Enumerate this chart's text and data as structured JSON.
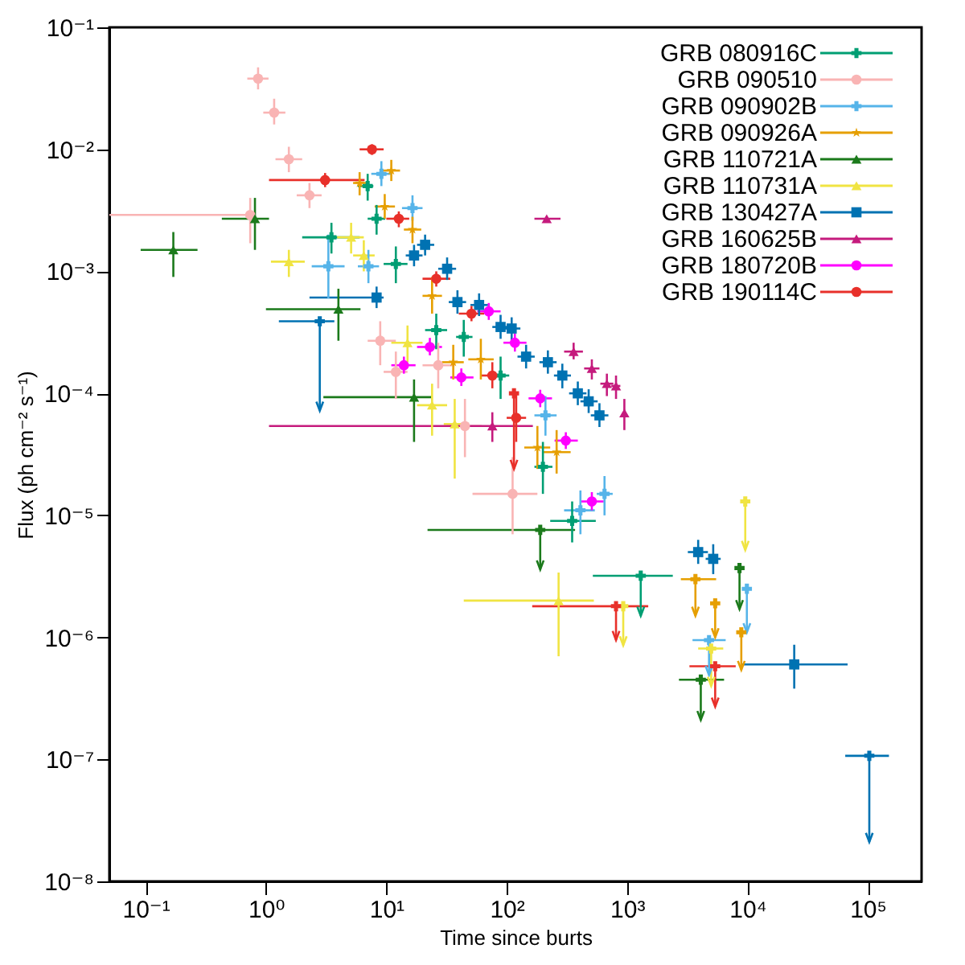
{
  "chart_data": {
    "type": "scatter",
    "xlabel": "Time since burts",
    "ylabel": "Flux (ph cm⁻² s⁻¹)",
    "log": "xy",
    "legend": "top right",
    "xlim": [
      0.05,
      280000
    ],
    "ylim": [
      1e-08,
      0.1
    ],
    "xticks": [
      {
        "value": 0.1,
        "label": "10⁻¹"
      },
      {
        "value": 1,
        "label": "10⁰"
      },
      {
        "value": 10,
        "label": "10¹"
      },
      {
        "value": 100,
        "label": "10²"
      },
      {
        "value": 1000,
        "label": "10³"
      },
      {
        "value": 10000,
        "label": "10⁴"
      },
      {
        "value": 100000,
        "label": "10⁵"
      }
    ],
    "yticks": [
      {
        "value": 1e-08,
        "label": "10⁻⁸"
      },
      {
        "value": 1e-07,
        "label": "10⁻⁷"
      },
      {
        "value": 1e-06,
        "label": "10⁻⁶"
      },
      {
        "value": 1e-05,
        "label": "10⁻⁵"
      },
      {
        "value": 0.0001,
        "label": "10⁻⁴"
      },
      {
        "value": 0.001,
        "label": "10⁻³"
      },
      {
        "value": 0.01,
        "label": "10⁻²"
      },
      {
        "value": 0.1,
        "label": "10⁻¹"
      }
    ],
    "series": [
      {
        "name": "GRB 080916C",
        "color": "#009e73",
        "marker": "cross",
        "x": [
          7.0,
          8.3,
          3.5,
          12,
          26,
          44,
          89,
          200,
          350
        ],
        "values": [
          0.005,
          0.0027,
          0.0019,
          0.00115,
          0.00033,
          0.00029,
          0.00014,
          2.5e-05,
          9e-06
        ],
        "errors": [
          [
            0.0038,
            0.0063
          ],
          [
            0.002,
            0.0035
          ],
          [
            0.0014,
            0.0025
          ],
          [
            0.0008,
            0.0016
          ],
          [
            0.00023,
            0.00045
          ],
          [
            0.0002,
            0.0004
          ],
          [
            9e-05,
            0.0002
          ],
          [
            1.5e-05,
            4e-05
          ],
          [
            6e-06,
            1.3e-05
          ]
        ],
        "xerrors": [
          [
            5.8,
            7.8
          ],
          [
            7,
            9.8
          ],
          [
            2.0,
            6
          ],
          [
            9.5,
            15
          ],
          [
            21,
            32
          ],
          [
            38,
            52
          ],
          [
            75,
            105
          ],
          [
            170,
            240
          ],
          [
            230,
            550
          ]
        ]
      },
      {
        "name": "GRB 090510",
        "color": "#f9b4b4",
        "marker": "circle",
        "x": [
          0.86,
          1.17,
          1.55,
          2.3,
          0.74,
          8.9,
          12,
          27,
          45,
          112
        ],
        "values": [
          0.038,
          0.02,
          0.0083,
          0.0042,
          0.0029,
          0.00027,
          0.00015,
          0.00017,
          5.4e-05,
          1.5e-05
        ],
        "errors": [
          [
            0.031,
            0.047
          ],
          [
            0.016,
            0.026
          ],
          [
            0.0065,
            0.0105
          ],
          [
            0.0033,
            0.0053
          ],
          [
            0.0017,
            0.004
          ],
          [
            0.00017,
            0.00039
          ],
          [
            9e-05,
            0.00022
          ],
          [
            0.00011,
            0.00026
          ],
          [
            3e-05,
            9e-05
          ],
          [
            7e-06,
            3e-05
          ]
        ],
        "xerrors": [
          [
            0.7,
            1.05
          ],
          [
            0.95,
            1.45
          ],
          [
            1.2,
            2.0
          ],
          [
            1.8,
            2.9
          ],
          [
            0.05,
            0.8
          ],
          [
            7,
            12
          ],
          [
            9.5,
            15
          ],
          [
            20,
            37
          ],
          [
            32,
            62
          ],
          [
            52,
            180
          ]
        ]
      },
      {
        "name": "GRB 090902B",
        "color": "#56b4e9",
        "marker": "cross",
        "x": [
          9.1,
          16.5,
          3.3,
          7.1,
          210,
          410,
          650
        ],
        "values": [
          0.0063,
          0.0033,
          0.0011,
          0.0011,
          6.6e-05,
          1.1e-05,
          1.5e-05
        ],
        "errors": [
          [
            0.005,
            0.008
          ],
          [
            0.0026,
            0.0042
          ],
          [
            0.0006,
            0.002
          ],
          [
            0.0008,
            0.0015
          ],
          [
            4.5e-05,
            9.5e-05
          ],
          [
            7e-06,
            1.6e-05
          ],
          [
            1e-05,
            2.1e-05
          ]
        ],
        "xerrors": [
          [
            7.5,
            11
          ],
          [
            13.5,
            20
          ],
          [
            2.4,
            4.5
          ],
          [
            5.8,
            8.7
          ],
          [
            170,
            260
          ],
          [
            300,
            540
          ],
          [
            560,
            760
          ]
        ]
      },
      {
        "name": "GRB 090926A",
        "color": "#e69f00",
        "marker": "star",
        "x": [
          11,
          6.0,
          9.7,
          16.5,
          24,
          36,
          61,
          180,
          260
        ],
        "values": [
          0.0067,
          0.0053,
          0.0034,
          0.0022,
          0.00063,
          0.00018,
          0.00019,
          3.6e-05,
          3.3e-05
        ],
        "errors": [
          [
            0.0055,
            0.0082
          ],
          [
            0.0042,
            0.0065
          ],
          [
            0.0027,
            0.0043
          ],
          [
            0.0017,
            0.0028
          ],
          [
            0.00045,
            0.0009
          ],
          [
            0.00013,
            0.00025
          ],
          [
            0.00013,
            0.00028
          ],
          [
            2.4e-05,
            5.4e-05
          ],
          [
            2.2e-05,
            5e-05
          ]
        ],
        "xerrors": [
          [
            9.2,
            13
          ],
          [
            5.3,
            6.8
          ],
          [
            8,
            11.8
          ],
          [
            14,
            19.5
          ],
          [
            20,
            29
          ],
          [
            29,
            44
          ],
          [
            48,
            78
          ],
          [
            140,
            230
          ],
          [
            200,
            340
          ]
        ]
      },
      {
        "name": "GRB 110721A",
        "color": "#1b7a1b",
        "marker": "triangle",
        "x": [
          0.17,
          0.81,
          4.0,
          17
        ],
        "values": [
          0.0015,
          0.0027,
          0.00049,
          9.3e-05
        ],
        "errors": [
          [
            0.0009,
            0.0021
          ],
          [
            0.0015,
            0.004
          ],
          [
            0.00027,
            0.00072
          ],
          [
            4e-05,
            0.00013
          ]
        ],
        "xerrors": [
          [
            0.091,
            0.27
          ],
          [
            0.43,
            1.06
          ],
          [
            1.0,
            6.1
          ],
          [
            3.0,
            24
          ]
        ]
      },
      {
        "name": "GRB 110731A",
        "color": "#f0e442",
        "marker": "triangle",
        "x": [
          1.55,
          5.1,
          6.5,
          15,
          24,
          37,
          270
        ],
        "values": [
          0.0012,
          0.0019,
          0.00135,
          0.00026,
          8e-05,
          5.6e-05,
          2e-06
        ],
        "errors": [
          [
            0.0009,
            0.0015
          ],
          [
            0.0014,
            0.0025
          ],
          [
            0.001,
            0.0018
          ],
          [
            0.00018,
            0.00036
          ],
          [
            4.5e-05,
            0.00012
          ],
          [
            2e-05,
            9e-05
          ],
          [
            7e-07,
            3.4e-06
          ]
        ],
        "xerrors": [
          [
            1.1,
            2.1
          ],
          [
            3.9,
            6.5
          ],
          [
            5.3,
            8
          ],
          [
            11,
            20
          ],
          [
            18,
            32
          ],
          [
            30,
            46
          ],
          [
            44,
            530
          ]
        ]
      },
      {
        "name": "GRB 130427A",
        "color": "#0072b2",
        "marker": "square",
        "x": [
          8.3,
          21,
          17,
          32,
          39,
          59,
          89,
          110,
          145,
          220,
          290,
          390,
          480,
          590,
          3900,
          5200,
          24500
        ],
        "values": [
          0.00061,
          0.00165,
          0.00135,
          0.00105,
          0.00056,
          0.00053,
          0.00035,
          0.00034,
          0.0002,
          0.00018,
          0.00014,
          0.0001,
          8.6e-05,
          6.6e-05,
          5e-06,
          4.4e-06,
          6e-07
        ],
        "errors": [
          [
            0.0005,
            0.00075
          ],
          [
            0.00135,
            0.002
          ],
          [
            0.0011,
            0.00165
          ],
          [
            0.00085,
            0.0013
          ],
          [
            0.00045,
            0.0007
          ],
          [
            0.00043,
            0.00066
          ],
          [
            0.00028,
            0.00044
          ],
          [
            0.00027,
            0.00042
          ],
          [
            0.00016,
            0.00025
          ],
          [
            0.000145,
            0.000225
          ],
          [
            0.00011,
            0.000175
          ],
          [
            8e-05,
            0.000125
          ],
          [
            6.9e-05,
            0.000108
          ],
          [
            5.3e-05,
            8.3e-05
          ],
          [
            4e-06,
            6.3e-06
          ],
          [
            3.3e-06,
            5.8e-06
          ],
          [
            3.8e-07,
            8.7e-07
          ]
        ],
        "xerrors": [
          [
            2.3,
            9.5
          ],
          [
            18,
            25
          ],
          [
            14.5,
            20
          ],
          [
            27,
            38
          ],
          [
            33,
            46
          ],
          [
            50,
            70
          ],
          [
            76,
            105
          ],
          [
            94,
            130
          ],
          [
            123,
            171
          ],
          [
            187,
            260
          ],
          [
            247,
            342
          ],
          [
            330,
            460
          ],
          [
            410,
            570
          ],
          [
            500,
            700
          ],
          [
            3200,
            4700
          ],
          [
            4500,
            6000
          ],
          [
            8900,
            68000
          ]
        ]
      },
      {
        "name": "GRB 160625B",
        "color": "#c51b7d",
        "marker": "triangle",
        "x": [
          215,
          360,
          510,
          680,
          810,
          950,
          76
        ],
        "values": [
          0.0027,
          0.00022,
          0.00016,
          0.00012,
          0.000115,
          6.9e-05,
          5.4e-05
        ],
        "errors": [
          [
            0.0026,
            0.0028
          ],
          [
            0.00019,
            0.00026
          ],
          [
            0.00013,
            0.00019
          ],
          [
            9.5e-05,
            0.000145
          ],
          [
            9e-05,
            0.00014
          ],
          [
            5e-05,
            9e-05
          ],
          [
            4e-05,
            7e-05
          ]
        ],
        "xerrors": [
          [
            170,
            280
          ],
          [
            300,
            430
          ],
          [
            440,
            590
          ],
          [
            600,
            770
          ],
          [
            740,
            880
          ],
          null,
          [
            1.06,
            165
          ]
        ]
      },
      {
        "name": "GRB 180720B",
        "color": "#ff00ff",
        "marker": "circle",
        "x": [
          14,
          23,
          42,
          71,
          117,
          190,
          310,
          510
        ],
        "values": [
          0.00017,
          0.00024,
          0.000135,
          0.00047,
          0.00026,
          9.1e-05,
          4.1e-05,
          1.3e-05
        ],
        "errors": [
          [
            0.000145,
            0.0002
          ],
          [
            0.000205,
            0.000285
          ],
          [
            0.000115,
            0.00016
          ],
          [
            0.0004,
            0.00055
          ],
          [
            0.00022,
            0.00031
          ],
          [
            7.7e-05,
            0.000107
          ],
          [
            3.5e-05,
            4.8e-05
          ],
          [
            1.1e-05,
            1.55e-05
          ]
        ],
        "xerrors": [
          [
            11,
            17.5
          ],
          [
            18,
            29
          ],
          [
            34,
            53
          ],
          [
            57,
            89
          ],
          [
            94,
            146
          ],
          [
            152,
            238
          ],
          [
            250,
            390
          ],
          [
            410,
            640
          ]
        ]
      },
      {
        "name": "GRB 190114C",
        "color": "#e8302a",
        "marker": "circle",
        "x": [
          7.6,
          3.1,
          12.7,
          26,
          51,
          76,
          120
        ],
        "values": [
          0.01,
          0.0056,
          0.0027,
          0.00087,
          0.00045,
          0.00014,
          6.3e-05
        ],
        "errors": [
          [
            0.009,
            0.011
          ],
          [
            0.0049,
            0.0064
          ],
          [
            0.0023,
            0.0031
          ],
          [
            0.00075,
            0.001
          ],
          [
            0.00039,
            0.00052
          ],
          [
            0.00011,
            0.00018
          ],
          [
            4e-05,
            0.0001
          ]
        ],
        "xerrors": [
          [
            6,
            9.5
          ],
          [
            1.06,
            6.6
          ],
          [
            10,
            15.5
          ],
          [
            20,
            34
          ],
          [
            40,
            65
          ],
          [
            62,
            92
          ],
          [
            100,
            145
          ]
        ]
      },
      {
        "color": "#009e73",
        "marker": "cross",
        "x": [
          1300
        ],
        "values": [
          3.2e-06
        ],
        "errors": [
          [
            1.5e-06,
            3.2e-06
          ]
        ],
        "xerrors": [
          [
            520,
            2400
          ]
        ]
      },
      {
        "color": "#56b4e9",
        "marker": "cross",
        "x": [
          4800,
          9900
        ],
        "values": [
          9.5e-07,
          2.5e-06
        ],
        "errors": [
          [
            4.9e-07,
            9.5e-07
          ],
          [
            1.1e-06,
            2.5e-06
          ]
        ],
        "xerrors": [
          [
            3500,
            6600
          ],
          null
        ]
      },
      {
        "color": "#e69f00",
        "marker": "cross",
        "x": [
          3700,
          5400,
          8900
        ],
        "values": [
          3e-06,
          1.9e-06,
          1.1e-06
        ],
        "errors": [
          [
            1.5e-06,
            3e-06
          ],
          [
            1e-06,
            1.9e-06
          ],
          [
            5.4e-07,
            1.1e-06
          ]
        ],
        "xerrors": [
          [
            2800,
            5500
          ],
          null,
          null
        ]
      },
      {
        "color": "#1b7a1b",
        "marker": "cross",
        "x": [
          190,
          8600,
          4100
        ],
        "values": [
          7.6e-06,
          3.7e-06,
          4.5e-07
        ],
        "errors": [
          [
            3.6e-06,
            7.6e-06
          ],
          [
            1.7e-06,
            3.7e-06
          ],
          [
            2.1e-07,
            4.5e-07
          ]
        ],
        "xerrors": [
          [
            22,
            370
          ],
          null,
          [
            2700,
            6400
          ]
        ]
      },
      {
        "color": "#f0e442",
        "marker": "cross",
        "x": [
          930,
          9600,
          5000
        ],
        "values": [
          1.8e-06,
          1.3e-05,
          8.1e-07
        ],
        "errors": [
          [
            8.6e-07,
            1.8e-06
          ],
          [
            5.2e-06,
            1.3e-05
          ],
          [
            4e-07,
            8.1e-07
          ]
        ],
        "xerrors": [
          null,
          null,
          [
            3900,
            6300
          ]
        ]
      },
      {
        "color": "#0072b2",
        "marker": "cross",
        "x": [
          2.8,
          103000
        ],
        "values": [
          0.00039,
          1.07e-07
        ],
        "errors": [
          [
            7.2e-05,
            0.00039
          ],
          [
            2.1e-08,
            1.07e-07
          ]
        ],
        "xerrors": [
          [
            1.28,
            3.7
          ],
          [
            65000,
            150000
          ]
        ]
      },
      {
        "color": "#e8302a",
        "marker": "cross",
        "x": [
          115,
          810,
          5400
        ],
        "values": [
          0.0001,
          1.8e-06,
          5.8e-07
        ],
        "errors": [
          [
            2.4e-05,
            0.0001
          ],
          [
            9.5e-07,
            1.8e-06
          ],
          [
            2.7e-07,
            5.8e-07
          ]
        ],
        "xerrors": [
          null,
          [
            163,
            1500
          ],
          [
            3300,
            8000
          ]
        ]
      }
    ]
  }
}
